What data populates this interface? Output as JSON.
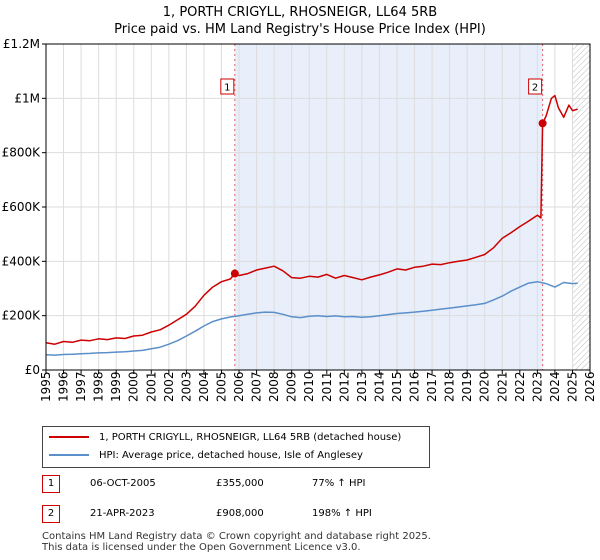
{
  "title_line1": "1, PORTH CRIGYLL, RHOSNEIGR, LL64 5RB",
  "title_line2": "Price paid vs. HM Land Registry's House Price Index (HPI)",
  "chart_data": {
    "type": "line",
    "title": "1, PORTH CRIGYLL, RHOSNEIGR, LL64 5RB - Price paid vs. HM Land Registry's House Price Index (HPI)",
    "xlabel": "",
    "ylabel": "",
    "xlim": [
      1995,
      2026
    ],
    "ylim": [
      0,
      1200000
    ],
    "x_ticks": [
      "1995",
      "1996",
      "1997",
      "1998",
      "1999",
      "2000",
      "2001",
      "2002",
      "2003",
      "2004",
      "2005",
      "2006",
      "2007",
      "2008",
      "2009",
      "2010",
      "2011",
      "2012",
      "2013",
      "2014",
      "2015",
      "2016",
      "2017",
      "2018",
      "2019",
      "2020",
      "2021",
      "2022",
      "2023",
      "2024",
      "2025",
      "2026"
    ],
    "y_ticks": [
      {
        "value": 0,
        "label": "£0"
      },
      {
        "value": 200000,
        "label": "£200K"
      },
      {
        "value": 400000,
        "label": "£400K"
      },
      {
        "value": 600000,
        "label": "£600K"
      },
      {
        "value": 800000,
        "label": "£800K"
      },
      {
        "value": 1000000,
        "label": "£1M"
      },
      {
        "value": 1200000,
        "label": "£1.2M"
      }
    ],
    "shaded_period": [
      2005.76,
      2023.3
    ],
    "forecast_from": 2025.0,
    "series": [
      {
        "name": "1, PORTH CRIGYLL, RHOSNEIGR, LL64 5RB (detached house)",
        "color": "#cc0000",
        "x": [
          1995.0,
          1995.5,
          1996.0,
          1996.5,
          1997.0,
          1997.5,
          1998.0,
          1998.5,
          1999.0,
          1999.5,
          2000.0,
          2000.5,
          2001.0,
          2001.5,
          2002.0,
          2002.5,
          2003.0,
          2003.5,
          2004.0,
          2004.5,
          2005.0,
          2005.5,
          2005.76,
          2006.0,
          2006.5,
          2007.0,
          2007.5,
          2008.0,
          2008.5,
          2009.0,
          2009.5,
          2010.0,
          2010.5,
          2011.0,
          2011.5,
          2012.0,
          2012.5,
          2013.0,
          2013.5,
          2014.0,
          2014.5,
          2015.0,
          2015.5,
          2016.0,
          2016.5,
          2017.0,
          2017.5,
          2018.0,
          2018.5,
          2019.0,
          2019.5,
          2020.0,
          2020.5,
          2021.0,
          2021.5,
          2022.0,
          2022.5,
          2023.0,
          2023.2,
          2023.3,
          2023.5,
          2023.8,
          2024.0,
          2024.2,
          2024.5,
          2024.8,
          2025.0,
          2025.3
        ],
        "values": [
          100000,
          95000,
          105000,
          102000,
          110000,
          108000,
          115000,
          112000,
          118000,
          116000,
          125000,
          128000,
          140000,
          148000,
          165000,
          185000,
          205000,
          235000,
          275000,
          305000,
          325000,
          335000,
          355000,
          348000,
          355000,
          368000,
          375000,
          382000,
          365000,
          340000,
          338000,
          345000,
          342000,
          352000,
          338000,
          348000,
          340000,
          332000,
          342000,
          350000,
          360000,
          372000,
          368000,
          378000,
          382000,
          390000,
          388000,
          395000,
          400000,
          405000,
          415000,
          425000,
          450000,
          485000,
          505000,
          528000,
          548000,
          570000,
          560000,
          908000,
          935000,
          1000000,
          1010000,
          965000,
          930000,
          975000,
          955000,
          960000
        ]
      },
      {
        "name": "HPI: Average price, detached house, Isle of Anglesey",
        "color": "#5b8fc9",
        "x": [
          1995.0,
          1995.5,
          1996.0,
          1996.5,
          1997.0,
          1997.5,
          1998.0,
          1998.5,
          1999.0,
          1999.5,
          2000.0,
          2000.5,
          2001.0,
          2001.5,
          2002.0,
          2002.5,
          2003.0,
          2003.5,
          2004.0,
          2004.5,
          2005.0,
          2005.5,
          2006.0,
          2006.5,
          2007.0,
          2007.5,
          2008.0,
          2008.5,
          2009.0,
          2009.5,
          2010.0,
          2010.5,
          2011.0,
          2011.5,
          2012.0,
          2012.5,
          2013.0,
          2013.5,
          2014.0,
          2014.5,
          2015.0,
          2015.5,
          2016.0,
          2016.5,
          2017.0,
          2017.5,
          2018.0,
          2018.5,
          2019.0,
          2019.5,
          2020.0,
          2020.5,
          2021.0,
          2021.5,
          2022.0,
          2022.5,
          2023.0,
          2023.5,
          2024.0,
          2024.5,
          2025.0,
          2025.3
        ],
        "values": [
          56000,
          55000,
          57000,
          58000,
          60000,
          61000,
          63000,
          64000,
          66000,
          67000,
          70000,
          72000,
          78000,
          84000,
          95000,
          108000,
          125000,
          143000,
          162000,
          178000,
          188000,
          195000,
          200000,
          205000,
          210000,
          213000,
          212000,
          205000,
          196000,
          193000,
          198000,
          200000,
          197000,
          199000,
          196000,
          197000,
          194000,
          196000,
          200000,
          204000,
          208000,
          210000,
          213000,
          216000,
          220000,
          224000,
          228000,
          232000,
          236000,
          240000,
          245000,
          258000,
          272000,
          290000,
          305000,
          320000,
          325000,
          318000,
          305000,
          322000,
          318000,
          320000
        ]
      }
    ],
    "annotations": [
      {
        "label": "1",
        "x": 2005.76,
        "value": 355000
      },
      {
        "label": "2",
        "x": 2023.3,
        "value": 908000
      }
    ]
  },
  "legend": {
    "property_label": "1, PORTH CRIGYLL, RHOSNEIGR, LL64 5RB (detached house)",
    "hpi_label": "HPI: Average price, detached house, Isle of Anglesey"
  },
  "transactions": [
    {
      "num": "1",
      "date": "06-OCT-2005",
      "price": "£355,000",
      "hpi": "77% ↑ HPI"
    },
    {
      "num": "2",
      "date": "21-APR-2023",
      "price": "£908,000",
      "hpi": "198% ↑ HPI"
    }
  ],
  "footer": {
    "line1": "Contains HM Land Registry data © Crown copyright and database right 2025.",
    "line2": "This data is licensed under the Open Government Licence v3.0."
  }
}
